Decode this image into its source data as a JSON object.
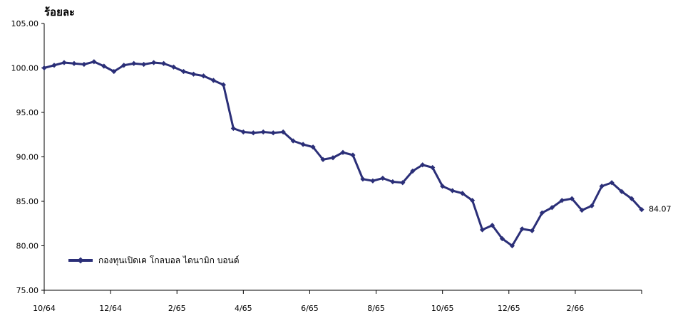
{
  "chart_data": {
    "type": "line",
    "ylabel": "ร้อยละ",
    "ylim": [
      75,
      105
    ],
    "y_ticks": [
      "75.00",
      "80.00",
      "85.00",
      "90.00",
      "95.00",
      "100.00",
      "105.00"
    ],
    "x_tick_labels": [
      "10/64",
      "12/64",
      "2/65",
      "4/65",
      "6/65",
      "8/65",
      "10/65",
      "12/65",
      "2/66"
    ],
    "grid": false,
    "legend_position": "bottom-left",
    "series": [
      {
        "name": "กองทุนเปิดเค โกลบอล ไดนามิก บอนด์",
        "color": "#2b2f78",
        "marker": "diamond",
        "end_label": "84.07",
        "x": [
          0,
          0.3,
          0.6,
          0.9,
          1.2,
          1.5,
          1.8,
          2.1,
          2.4,
          2.7,
          3,
          3.3,
          3.6,
          3.9,
          4.2,
          4.5,
          4.8,
          5.1,
          5.4,
          5.7,
          6,
          6.3,
          6.6,
          6.9,
          7.2,
          7.5,
          7.8,
          8.1,
          8.4,
          8.7,
          9,
          9.3,
          9.6,
          9.9,
          10.2,
          10.5,
          10.8,
          11.1,
          11.4,
          11.7,
          12,
          12.3,
          12.6,
          12.9,
          13.2,
          13.5,
          13.8,
          14.1,
          14.4,
          14.7,
          15,
          15.3,
          15.6,
          15.9,
          16.2,
          16.5,
          16.8,
          17.1,
          17.4,
          17.7,
          18
        ],
        "values": [
          100,
          100.3,
          100.6,
          100.5,
          100.4,
          100.7,
          100.2,
          99.6,
          100.3,
          100.5,
          100.4,
          100.6,
          100.5,
          100.1,
          99.6,
          99.3,
          99.1,
          98.6,
          98.1,
          93.2,
          92.8,
          92.7,
          92.8,
          92.7,
          92.8,
          91.8,
          91.4,
          91.1,
          89.7,
          89.9,
          90.5,
          90.2,
          87.5,
          87.3,
          87.6,
          87.2,
          87.1,
          88.4,
          89.1,
          88.8,
          86.7,
          86.2,
          85.9,
          85.1,
          81.8,
          82.3,
          80.8,
          80,
          81.9,
          81.7,
          83.7,
          84.3,
          85.1,
          85.3,
          84,
          84.5,
          86.7,
          87.1,
          86.1,
          85.3,
          84.07
        ]
      }
    ]
  }
}
